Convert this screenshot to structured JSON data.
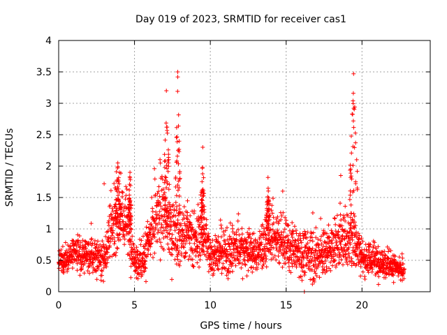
{
  "chart_data": {
    "type": "scatter",
    "title": "Day 019 of 2023, SRMTID for receiver cas1",
    "xlabel": "GPS time / hours",
    "ylabel": "SRMTID / TECUs",
    "xlim": [
      0,
      24.5
    ],
    "ylim": [
      0,
      4
    ],
    "x_ticks": [
      0,
      5,
      10,
      15,
      20
    ],
    "y_ticks": [
      0,
      0.5,
      1,
      1.5,
      2,
      2.5,
      3,
      3.5,
      4
    ],
    "x_tick_labels": [
      "0",
      "5",
      "10",
      "15",
      "20"
    ],
    "y_tick_labels": [
      "0",
      "0.5",
      "1",
      "1.5",
      "2",
      "2.5",
      "3",
      "3.5",
      "4"
    ],
    "grid": true,
    "marker": "+",
    "color": "#ff0000",
    "profile": {
      "x": [
        0,
        1,
        2,
        3,
        3.5,
        4,
        4.5,
        5,
        5.5,
        6,
        6.5,
        7,
        7.5,
        8,
        8.5,
        9,
        9.5,
        10,
        11,
        12,
        13,
        14,
        15,
        16,
        17,
        18,
        18.5,
        19,
        19.5,
        20,
        21,
        22,
        22.8
      ],
      "y_center": [
        0.45,
        0.6,
        0.55,
        0.55,
        1.0,
        1.2,
        1.1,
        0.5,
        0.45,
        0.8,
        1.2,
        1.2,
        0.9,
        0.9,
        0.9,
        0.75,
        0.95,
        0.6,
        0.6,
        0.7,
        0.6,
        0.85,
        0.75,
        0.6,
        0.55,
        0.65,
        0.8,
        0.85,
        0.85,
        0.55,
        0.5,
        0.4,
        0.3
      ],
      "y_spread": [
        0.2,
        0.25,
        0.25,
        0.3,
        0.5,
        0.5,
        0.5,
        0.25,
        0.3,
        0.45,
        0.55,
        0.55,
        0.45,
        0.45,
        0.45,
        0.4,
        0.5,
        0.3,
        0.35,
        0.35,
        0.3,
        0.4,
        0.35,
        0.35,
        0.35,
        0.35,
        0.45,
        0.45,
        0.45,
        0.3,
        0.25,
        0.2,
        0.15
      ],
      "samples": 2400
    },
    "spikes": [
      {
        "x_start": 6.9,
        "x_end": 7.3,
        "y_peak": 3.2
      },
      {
        "x_start": 7.7,
        "x_end": 8.0,
        "y_peak": 3.5
      },
      {
        "x_start": 9.4,
        "x_end": 9.6,
        "y_peak": 2.3
      },
      {
        "x_start": 19.2,
        "x_end": 19.7,
        "y_peak": 3.47
      },
      {
        "x_start": 3.7,
        "x_end": 4.1,
        "y_peak": 2.05
      },
      {
        "x_start": 4.6,
        "x_end": 4.8,
        "y_peak": 1.9
      },
      {
        "x_start": 13.7,
        "x_end": 13.9,
        "y_peak": 1.82
      }
    ],
    "outliers": [
      {
        "x": 16.2,
        "y": 0.0
      },
      {
        "x": 18.6,
        "y": 1.85
      },
      {
        "x": 3.0,
        "y": 1.72
      }
    ]
  }
}
